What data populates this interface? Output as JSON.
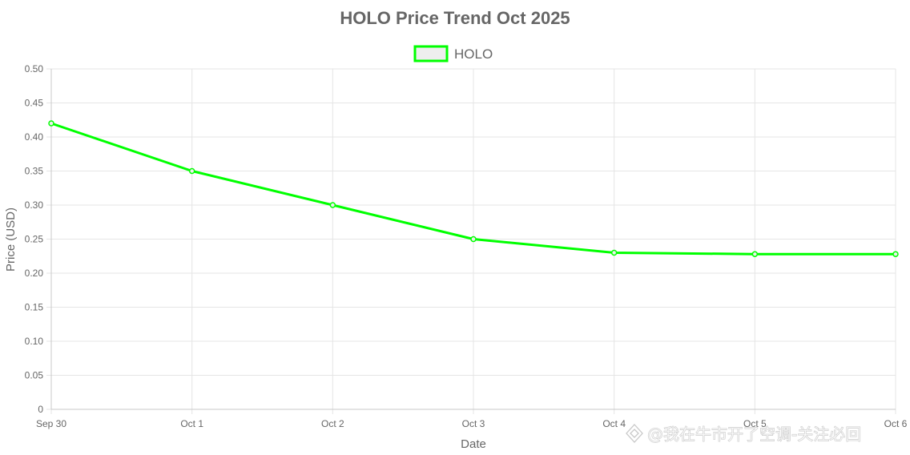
{
  "chart_data": {
    "type": "line",
    "title": "HOLO Price Trend Oct 2025",
    "xlabel": "Date",
    "ylabel": "Price (USD)",
    "categories": [
      "Sep 30",
      "Oct 1",
      "Oct 2",
      "Oct 3",
      "Oct 4",
      "Oct 5",
      "Oct 6"
    ],
    "series": [
      {
        "name": "HOLO",
        "values": [
          0.42,
          0.35,
          0.3,
          0.25,
          0.23,
          0.228,
          0.228
        ],
        "color": "#00ff00",
        "legend_fill": "#eeeeee"
      }
    ],
    "ylim": [
      0,
      0.5
    ],
    "yticks": [
      "0",
      "0.05",
      "0.10",
      "0.15",
      "0.20",
      "0.25",
      "0.30",
      "0.35",
      "0.40",
      "0.45",
      "0.50"
    ],
    "grid": true,
    "legend_position": "top"
  },
  "watermark": {
    "text": "@我在牛市开了空调-关注必回",
    "icon": "platform-logo-icon"
  }
}
